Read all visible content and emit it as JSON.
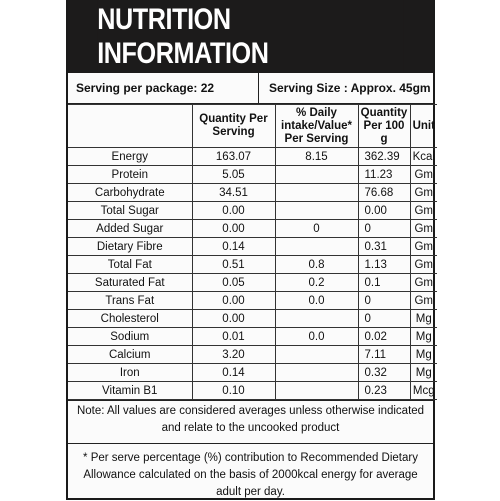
{
  "title": "NUTRITION INFORMATION",
  "serving": {
    "per_package": "Serving per package: 22",
    "size": "Serving Size : Approx. 45gm"
  },
  "table": {
    "headers": [
      "",
      "Quantity Per Serving",
      "% Daily intake/Value* Per Serving",
      "Quantity Per 100 g",
      "Unit"
    ],
    "rows": [
      [
        "Energy",
        "163.07",
        "8.15",
        "362.39",
        "Kcal"
      ],
      [
        "Protein",
        "5.05",
        "",
        "11.23",
        "Gm"
      ],
      [
        "Carbohydrate",
        "34.51",
        "",
        "76.68",
        "Gm"
      ],
      [
        "Total Sugar",
        "0.00",
        "",
        "0.00",
        "Gm"
      ],
      [
        "Added Sugar",
        "0.00",
        "0",
        "0",
        "Gm"
      ],
      [
        "Dietary Fibre",
        "0.14",
        "",
        "0.31",
        "Gm"
      ],
      [
        "Total Fat",
        "0.51",
        "0.8",
        "1.13",
        "Gm"
      ],
      [
        "Saturated Fat",
        "0.05",
        "0.2",
        "0.1",
        "Gm"
      ],
      [
        "Trans Fat",
        "0.00",
        "0.0",
        "0",
        "Gm"
      ],
      [
        "Cholesterol",
        "0.00",
        "",
        "0",
        "Mg"
      ],
      [
        "Sodium",
        "0.01",
        "0.0",
        "0.02",
        "Mg"
      ],
      [
        "Calcium",
        "3.20",
        "",
        "7.11",
        "Mg"
      ],
      [
        "Iron",
        "0.14",
        "",
        "0.32",
        "Mg"
      ],
      [
        "Vitamin B1",
        "0.10",
        "",
        "0.23",
        "Mcg"
      ]
    ]
  },
  "note": "Note: All values are considered averages unless otherwise indicated and relate to the uncooked product",
  "footer": "* Per serve percentage (%) contribution to Recommended Dietary Allowance calculated on the basis of 2000kcal energy for average adult per day."
}
